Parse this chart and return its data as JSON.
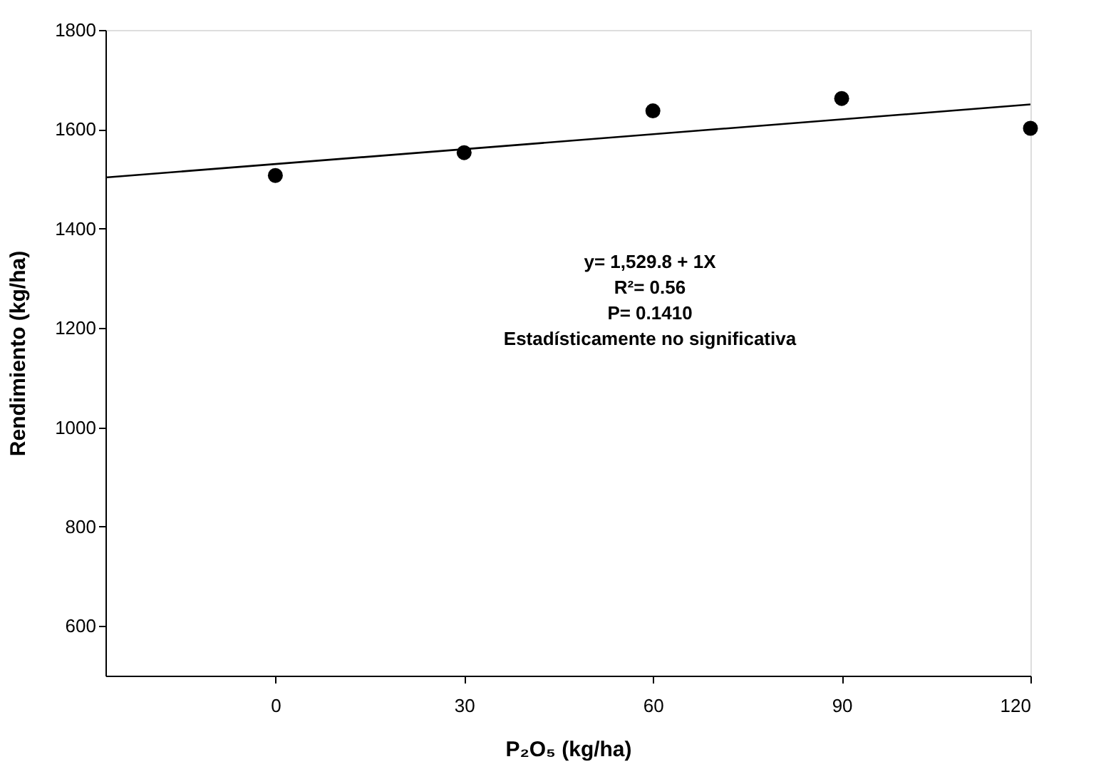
{
  "chart_data": {
    "type": "scatter",
    "xlabel": "P₂O₅ (kg/ha)",
    "ylabel": "Rendimiento (kg/ha)",
    "x": [
      0,
      30,
      60,
      90,
      120
    ],
    "series": [
      {
        "color": "#000000",
        "values": [
          1507,
          1553,
          1637,
          1662,
          1602
        ],
        "marker": "circle"
      },
      {
        "type": "line",
        "color": "#000000",
        "x": [
          -27,
          120
        ],
        "values": [
          1503,
          1650
        ],
        "line_style": "solid"
      }
    ],
    "xlim": [
      -27,
      120
    ],
    "xticks": [
      0,
      30,
      60,
      90,
      120
    ],
    "ylim": [
      500,
      1800
    ],
    "yticks": [
      600,
      800,
      1000,
      1200,
      1400,
      1600,
      1800
    ],
    "annotations": [
      "y= 1,529.8 + 1X",
      "R²= 0.56",
      "P= 0.1410",
      "Estadísticamente no significativa"
    ],
    "grid": false
  }
}
